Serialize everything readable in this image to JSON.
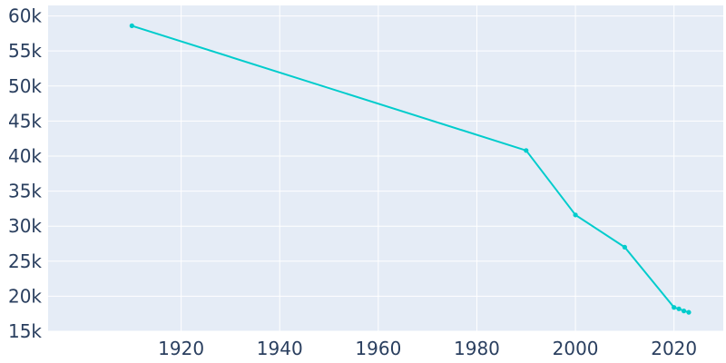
{
  "chart_data": {
    "type": "line",
    "title": "",
    "xlabel": "",
    "ylabel": "",
    "x": [
      1910,
      1990,
      2000,
      2010,
      2020,
      2021,
      2022,
      2023
    ],
    "series": [
      {
        "values": [
          58600,
          40800,
          31600,
          27000,
          18400,
          18200,
          17900,
          17700
        ],
        "color": "#00cccc"
      }
    ],
    "xlim": [
      1893,
      2030
    ],
    "ylim": [
      15000,
      61500
    ],
    "xticks": [
      1920,
      1940,
      1960,
      1980,
      2000,
      2020
    ],
    "xtick_labels": [
      "1920",
      "1940",
      "1960",
      "1980",
      "2000",
      "2020"
    ],
    "yticks": [
      15000,
      20000,
      25000,
      30000,
      35000,
      40000,
      45000,
      50000,
      55000,
      60000
    ],
    "ytick_labels": [
      "15k",
      "20k",
      "25k",
      "30k",
      "35k",
      "40k",
      "45k",
      "50k",
      "55k",
      "60k"
    ],
    "grid": true,
    "legend": false,
    "colors": {
      "plot_bg": "#e5ecf6",
      "grid": "#ffffff",
      "text": "#2a3f5f",
      "line": "#00cccc"
    }
  }
}
